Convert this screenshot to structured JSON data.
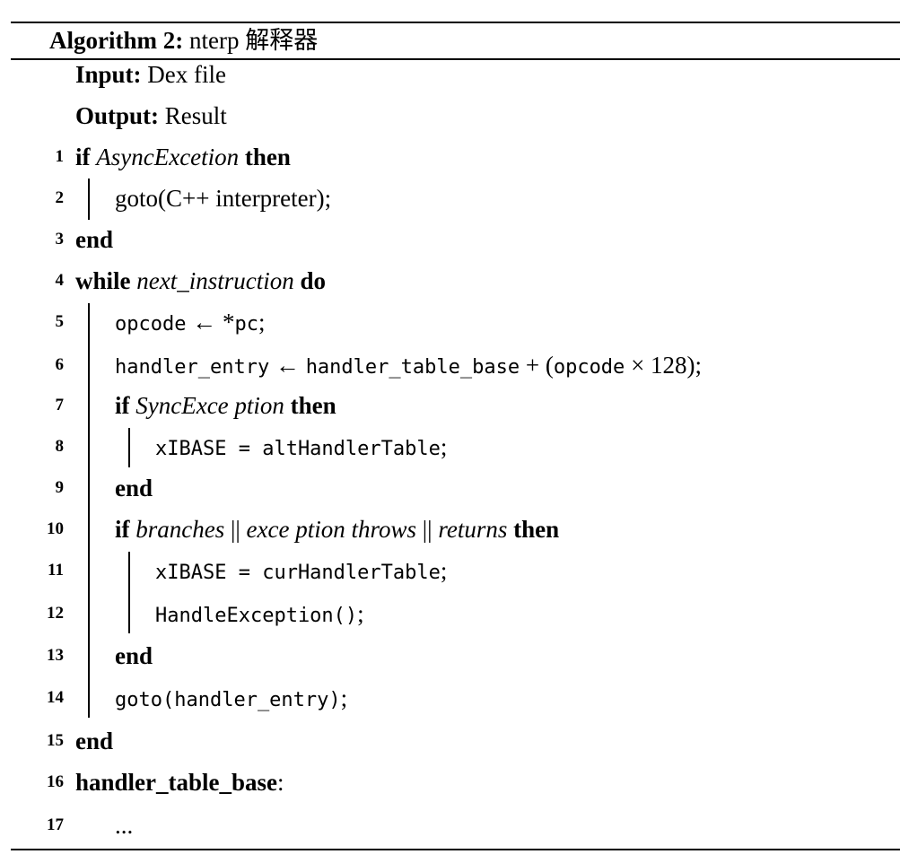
{
  "algorithm": {
    "label": "Algorithm 2:",
    "title": "nterp 解释器",
    "input_label": "Input:",
    "input_value": "Dex file",
    "output_label": "Output:",
    "output_value": "Result"
  },
  "lines": [
    {
      "num": "1",
      "kw1": "if",
      "cond": "AsyncExcetion",
      "kw2": "then"
    },
    {
      "num": "2",
      "text": "goto(C++ interpreter);"
    },
    {
      "num": "3",
      "kw": "end"
    },
    {
      "num": "4",
      "kw1": "while",
      "cond": "next_instruction",
      "kw2": "do"
    },
    {
      "num": "5",
      "lhs": "opcode",
      "arrow": "←",
      "rhs_ptr": "*",
      "rhs": "pc",
      "end": ";"
    },
    {
      "num": "6",
      "lhs": "handler_entry",
      "arrow": "←",
      "rhs_a": "handler_table_base",
      "plus": " + (",
      "rhs_b": "opcode",
      "times": " × 128);"
    },
    {
      "num": "7",
      "kw1": "if",
      "cond": "SyncExce ption",
      "kw2": "then"
    },
    {
      "num": "8",
      "code": "xIBASE = altHandlerTable",
      "end": ";"
    },
    {
      "num": "9",
      "kw": "end"
    },
    {
      "num": "10",
      "kw1": "if",
      "cond_a": "branches",
      "or1": " || ",
      "cond_b": "exce ption throws",
      "or2": " || ",
      "cond_c": "returns",
      "kw2": "then"
    },
    {
      "num": "11",
      "code": "xIBASE = curHandlerTable",
      "end": ";"
    },
    {
      "num": "12",
      "code": "HandleException()",
      "end": ";"
    },
    {
      "num": "13",
      "kw": "end"
    },
    {
      "num": "14",
      "code": "goto(handler_entry)",
      "end": ";"
    },
    {
      "num": "15",
      "kw": "end"
    },
    {
      "num": "16",
      "kw": "handler_table_base",
      "end": ":"
    },
    {
      "num": "17",
      "text": "..."
    }
  ]
}
